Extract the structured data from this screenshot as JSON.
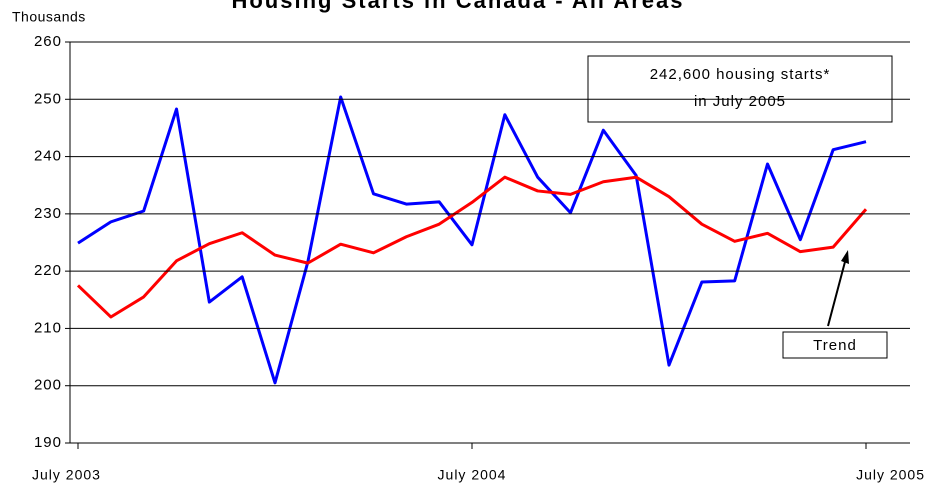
{
  "chart_data": {
    "type": "line",
    "title": "Housing Starts in Canada - All Areas",
    "y_label": "Thousands",
    "categories": [
      "July 2003",
      null,
      null,
      null,
      null,
      null,
      null,
      null,
      null,
      null,
      null,
      null,
      "July 2004",
      null,
      null,
      null,
      null,
      null,
      null,
      null,
      null,
      null,
      null,
      null,
      "July 2005"
    ],
    "series": [
      {
        "color": "#0000ff",
        "values": [
          224.9,
          228.6,
          230.5,
          248.3,
          214.6,
          219,
          200.5,
          221.6,
          250.4,
          233.5,
          231.7,
          232.1,
          224.6,
          247.3,
          236.4,
          230.2,
          244.6,
          236.7,
          203.6,
          218.1,
          218.3,
          238.7,
          225.5,
          241.2,
          242.6
        ]
      },
      {
        "color": "#ff0000",
        "values": [
          217.5,
          212,
          215.5,
          221.8,
          224.8,
          226.7,
          222.8,
          221.4,
          224.7,
          223.2,
          226,
          228.2,
          232,
          236.4,
          234,
          233.4,
          235.6,
          236.4,
          233,
          228.2,
          225.2,
          226.6,
          223.4,
          224.2,
          230.8
        ]
      }
    ],
    "ylim": [
      190,
      260
    ],
    "yticks": [
      190,
      200,
      210,
      220,
      230,
      240,
      250,
      260
    ],
    "grid": true,
    "annotations": [
      "242,600 housing starts*",
      "in July 2005",
      "Trend"
    ]
  }
}
